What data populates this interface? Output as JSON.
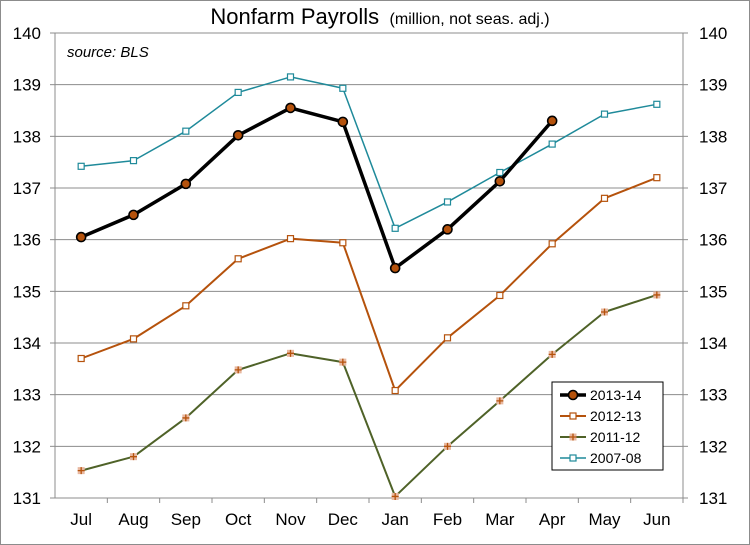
{
  "chart_data": {
    "type": "line",
    "title": "Nonfarm Payrolls",
    "subtitle": "(million, not seas. adj.)",
    "annotation": "source: BLS",
    "categories": [
      "Jul",
      "Aug",
      "Sep",
      "Oct",
      "Nov",
      "Dec",
      "Jan",
      "Feb",
      "Mar",
      "Apr",
      "May",
      "Jun"
    ],
    "ylim": [
      131,
      140
    ],
    "yticks": [
      131,
      132,
      133,
      134,
      135,
      136,
      137,
      138,
      139,
      140
    ],
    "secondary_y_axis": true,
    "grid": "horizontal",
    "legend_position": "bottom-right",
    "series": [
      {
        "name": "2013-14",
        "color": "#000000",
        "marker": "circle",
        "values": [
          136.05,
          136.48,
          137.08,
          138.02,
          138.55,
          138.28,
          135.45,
          136.2,
          137.13,
          138.3,
          null,
          null
        ]
      },
      {
        "name": "2012-13",
        "color": "#b5520c",
        "marker": "square",
        "values": [
          133.7,
          134.08,
          134.72,
          135.63,
          136.02,
          135.94,
          133.08,
          134.1,
          134.92,
          135.92,
          136.8,
          137.2
        ]
      },
      {
        "name": "2011-12",
        "color": "#4f6228",
        "marker": "cross",
        "values": [
          131.53,
          131.8,
          132.55,
          133.48,
          133.8,
          133.63,
          131.03,
          132.0,
          132.88,
          133.78,
          134.6,
          134.93
        ]
      },
      {
        "name": "2007-08",
        "color": "#1f8a9a",
        "marker": "square",
        "values": [
          137.42,
          137.53,
          138.1,
          138.85,
          139.15,
          138.93,
          136.22,
          136.73,
          137.3,
          137.85,
          138.43,
          138.62
        ]
      }
    ]
  }
}
